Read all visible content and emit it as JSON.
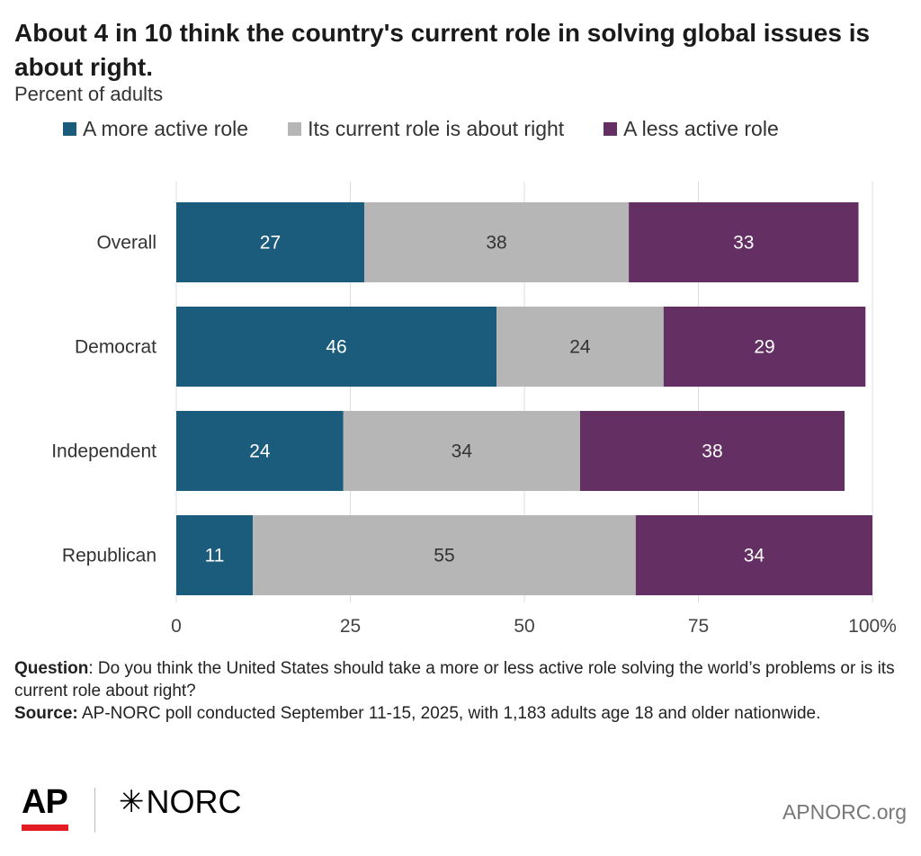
{
  "chart_data": {
    "type": "bar",
    "orientation": "horizontal",
    "stacked": true,
    "title": "About 4 in 10 think the country's current role in solving global issues is about right.",
    "subtitle": "Percent of adults",
    "categories": [
      "Overall",
      "Democrat",
      "Independent",
      "Republican"
    ],
    "series": [
      {
        "name": "A more active role",
        "color": "#1b5b7c",
        "values": [
          27,
          46,
          24,
          11
        ]
      },
      {
        "name": "Its current role is about right",
        "color": "#b6b6b6",
        "values": [
          38,
          24,
          34,
          55
        ]
      },
      {
        "name": "A less active role",
        "color": "#642f62",
        "values": [
          33,
          29,
          38,
          34
        ]
      }
    ],
    "xlim": [
      0,
      100
    ],
    "xticks": [
      "0",
      "25",
      "50",
      "75",
      "100%"
    ],
    "grid": true,
    "legend_position": "top"
  },
  "notes": {
    "question_label": "Question",
    "question_text": ": Do you think the United States should take a more or less active role solving the world’s problems or is its current role about right?",
    "source_label": "Source:",
    "source_text": " AP-NORC poll conducted September 11-15, 2025, with 1,183 adults age 18 and older nationwide."
  },
  "footer": {
    "ap_logo": "AP",
    "norc_mark": "✳",
    "norc_logo": "NORC",
    "site": "APNORC.org"
  }
}
